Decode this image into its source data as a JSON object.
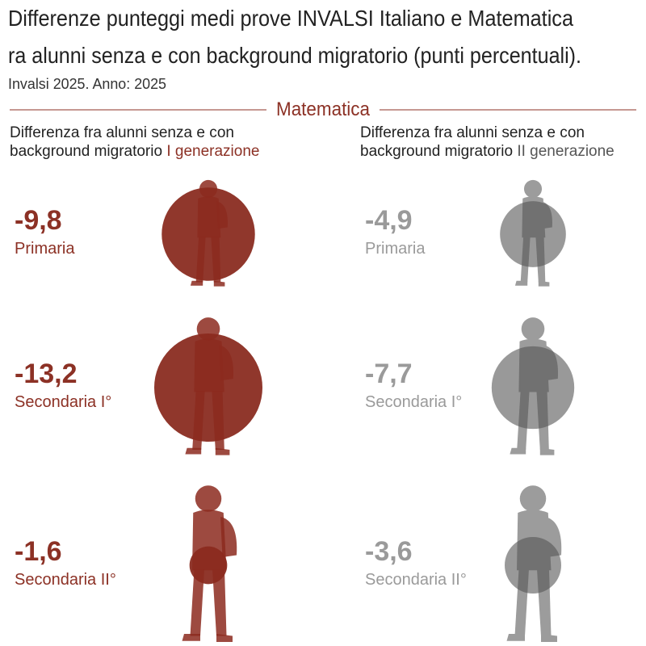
{
  "header": {
    "title_line1": "Differenze punteggi medi prove INVALSI Italiano e Matematica",
    "title_line2": "ra alunni senza e con background migratorio (punti percentuali).",
    "subtitle": "Invalsi 2025. Anno: 2025"
  },
  "section": "Matematica",
  "columns": [
    {
      "heading_line1": "Differenza fra alunni senza e con",
      "heading_line2": "background migratorio",
      "heading_highlight": "I generazione",
      "color": "#8c3125",
      "figure_color": "#8c2a1f",
      "items": [
        {
          "value": -9.8,
          "label": "-9,8",
          "level": "Primaria"
        },
        {
          "value": -13.2,
          "label": "-13,2",
          "level": "Secondaria I°"
        },
        {
          "value": -1.6,
          "label": "-1,6",
          "level": "Secondaria II°"
        }
      ]
    },
    {
      "heading_line1": "Differenza fra alunni senza e con",
      "heading_line2": "background migratorio",
      "heading_highlight": "II generazione",
      "color": "#555555",
      "figure_color": "#9c9c9c",
      "items": [
        {
          "value": -4.9,
          "label": "-4,9",
          "level": "Primaria"
        },
        {
          "value": -7.7,
          "label": "-7,7",
          "level": "Secondaria I°"
        },
        {
          "value": -3.6,
          "label": "-3,6",
          "level": "Secondaria II°"
        }
      ]
    }
  ]
}
